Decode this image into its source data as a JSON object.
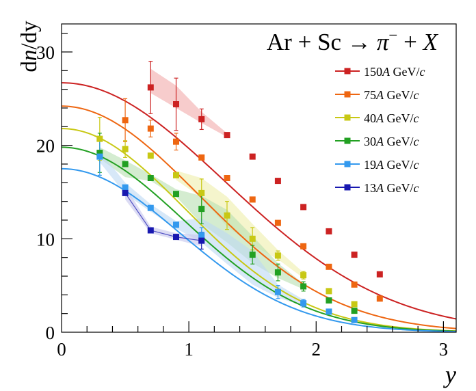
{
  "chart_data": {
    "type": "scatter",
    "title": "Ar + Sc → π⁻ + X",
    "title_parts": {
      "lhs": "Ar + Sc ",
      "arrow": "→",
      "particle": "π",
      "charge": "−",
      "rhs_plus": " + ",
      "rhs_var": "X"
    },
    "xlabel": "y",
    "ylabel": {
      "d1": "d",
      "n": "n",
      "rest": "/dy"
    },
    "xlim": [
      0,
      3.1
    ],
    "ylim": [
      0,
      33
    ],
    "x_ticks": [
      0,
      1,
      2,
      3
    ],
    "x_tick_labels": [
      "0",
      "1",
      "2",
      "3"
    ],
    "y_ticks": [
      0,
      10,
      20,
      30
    ],
    "y_tick_labels": [
      "0",
      "10",
      "20",
      "30"
    ],
    "grid": false,
    "legend_position": "top-right",
    "series": [
      {
        "name": "150A GeV/c",
        "legend": {
          "num": "150",
          "A": "A",
          "unit": " GeV/",
          "c": "c"
        },
        "color": "#cc2222",
        "band_color": "#f2aaaa",
        "curve": {
          "A": 26.7,
          "sigma": 1.28
        },
        "points": [
          {
            "x": 0.7,
            "y": 26.2,
            "err": 2.8
          },
          {
            "x": 0.9,
            "y": 24.4,
            "err": 2.8
          },
          {
            "x": 1.1,
            "y": 22.8,
            "err": 1.1
          },
          {
            "x": 1.3,
            "y": 21.1,
            "err": 0
          },
          {
            "x": 1.5,
            "y": 18.8,
            "err": 0
          },
          {
            "x": 1.7,
            "y": 16.2,
            "err": 0
          },
          {
            "x": 1.9,
            "y": 13.4,
            "err": 0
          },
          {
            "x": 2.1,
            "y": 10.8,
            "err": 0
          },
          {
            "x": 2.3,
            "y": 8.3,
            "err": 0
          },
          {
            "x": 2.5,
            "y": 6.2,
            "err": 0
          }
        ],
        "band": [
          {
            "x": 0.7,
            "lo": 25.6,
            "hi": 28.2
          },
          {
            "x": 0.9,
            "lo": 24.0,
            "hi": 26.4
          },
          {
            "x": 1.1,
            "lo": 22.4,
            "hi": 23.6
          },
          {
            "x": 1.3,
            "lo": 20.9,
            "hi": 21.3
          }
        ]
      },
      {
        "name": "75A GeV/c",
        "legend": {
          "num": "75",
          "A": "A",
          "unit": " GeV/",
          "c": "c"
        },
        "color": "#ee6611",
        "band_color": "#f9c8a0",
        "curve": {
          "A": 24.2,
          "sigma": 1.08
        },
        "points": [
          {
            "x": 0.5,
            "y": 22.7,
            "err": 2.3
          },
          {
            "x": 0.7,
            "y": 21.8,
            "err": 0.9
          },
          {
            "x": 0.9,
            "y": 20.4,
            "err": 0.9
          },
          {
            "x": 1.1,
            "y": 18.7,
            "err": 0
          },
          {
            "x": 1.3,
            "y": 16.5,
            "err": 0
          },
          {
            "x": 1.5,
            "y": 14.2,
            "err": 0
          },
          {
            "x": 1.7,
            "y": 11.7,
            "err": 0
          },
          {
            "x": 1.9,
            "y": 9.2,
            "err": 0
          },
          {
            "x": 2.1,
            "y": 7.0,
            "err": 0
          },
          {
            "x": 2.3,
            "y": 5.1,
            "err": 0
          },
          {
            "x": 2.5,
            "y": 3.6,
            "err": 0
          }
        ],
        "band": []
      },
      {
        "name": "40A GeV/c",
        "legend": {
          "num": "40",
          "A": "A",
          "unit": " GeV/",
          "c": "c"
        },
        "color": "#c8c814",
        "band_color": "#eeeeaa",
        "curve": {
          "A": 21.8,
          "sigma": 0.97
        },
        "points": [
          {
            "x": 0.3,
            "y": 20.7,
            "err": 2.3
          },
          {
            "x": 0.5,
            "y": 19.6,
            "err": 0.9
          },
          {
            "x": 0.7,
            "y": 18.9,
            "err": 0
          },
          {
            "x": 0.9,
            "y": 16.8,
            "err": 0
          },
          {
            "x": 1.1,
            "y": 14.9,
            "err": 1.5
          },
          {
            "x": 1.3,
            "y": 12.5,
            "err": 1.5
          },
          {
            "x": 1.5,
            "y": 10.0,
            "err": 1.2
          },
          {
            "x": 1.7,
            "y": 8.2,
            "err": 0.5
          },
          {
            "x": 1.9,
            "y": 6.1,
            "err": 0.4
          },
          {
            "x": 2.1,
            "y": 4.4,
            "err": 0
          },
          {
            "x": 2.3,
            "y": 3.0,
            "err": 0
          }
        ],
        "band": [
          {
            "x": 0.9,
            "lo": 16.3,
            "hi": 17.3
          },
          {
            "x": 1.1,
            "lo": 14.4,
            "hi": 16.5
          },
          {
            "x": 1.3,
            "lo": 11.3,
            "hi": 14.5
          },
          {
            "x": 1.5,
            "lo": 9.3,
            "hi": 11.6
          },
          {
            "x": 1.7,
            "lo": 7.8,
            "hi": 8.8
          },
          {
            "x": 1.9,
            "lo": 5.8,
            "hi": 6.4
          }
        ]
      },
      {
        "name": "30A GeV/c",
        "legend": {
          "num": "30",
          "A": "A",
          "unit": " GeV/",
          "c": "c"
        },
        "color": "#22a022",
        "band_color": "#b8e0b0",
        "curve": {
          "A": 19.8,
          "sigma": 0.96
        },
        "points": [
          {
            "x": 0.3,
            "y": 19.2,
            "err": 2.1
          },
          {
            "x": 0.5,
            "y": 18.0,
            "err": 0
          },
          {
            "x": 0.7,
            "y": 16.5,
            "err": 0
          },
          {
            "x": 0.9,
            "y": 14.8,
            "err": 0
          },
          {
            "x": 1.1,
            "y": 13.2,
            "err": 1.6
          },
          {
            "x": 1.5,
            "y": 8.3,
            "err": 1.0
          },
          {
            "x": 1.7,
            "y": 6.4,
            "err": 0.9
          },
          {
            "x": 1.9,
            "y": 4.9,
            "err": 0.5
          },
          {
            "x": 2.1,
            "y": 3.4,
            "err": 0
          },
          {
            "x": 2.3,
            "y": 2.3,
            "err": 0
          }
        ],
        "band": [
          {
            "x": 0.3,
            "lo": 18.6,
            "hi": 19.8
          },
          {
            "x": 0.5,
            "lo": 16.6,
            "hi": 18.4
          },
          {
            "x": 0.7,
            "lo": 16.2,
            "hi": 16.9
          },
          {
            "x": 0.9,
            "lo": 14.5,
            "hi": 15.3
          },
          {
            "x": 1.1,
            "lo": 11.6,
            "hi": 14.6
          },
          {
            "x": 1.3,
            "lo": 9.6,
            "hi": 13.1
          },
          {
            "x": 1.5,
            "lo": 7.4,
            "hi": 10.3
          },
          {
            "x": 1.7,
            "lo": 5.8,
            "hi": 7.4
          },
          {
            "x": 1.9,
            "lo": 4.6,
            "hi": 5.2
          }
        ]
      },
      {
        "name": "19A GeV/c",
        "legend": {
          "num": "19",
          "A": "A",
          "unit": " GeV/",
          "c": "c"
        },
        "color": "#3399ee",
        "band_color": "#bcd9f4",
        "curve": {
          "A": 17.5,
          "sigma": 0.93
        },
        "points": [
          {
            "x": 0.3,
            "y": 18.8,
            "err": 2.0
          },
          {
            "x": 0.5,
            "y": 15.5,
            "err": 0
          },
          {
            "x": 0.7,
            "y": 13.3,
            "err": 0
          },
          {
            "x": 0.9,
            "y": 11.5,
            "err": 0
          },
          {
            "x": 1.1,
            "y": 10.4,
            "err": 0.8
          },
          {
            "x": 1.7,
            "y": 4.3,
            "err": 0.7
          },
          {
            "x": 1.9,
            "y": 3.1,
            "err": 0.4
          },
          {
            "x": 2.1,
            "y": 2.2,
            "err": 0
          },
          {
            "x": 2.3,
            "y": 1.3,
            "err": 0
          }
        ],
        "band": [
          {
            "x": 0.3,
            "lo": 18.2,
            "hi": 19.4
          },
          {
            "x": 0.5,
            "lo": 14.8,
            "hi": 16.0
          },
          {
            "x": 0.7,
            "lo": 12.9,
            "hi": 13.7
          },
          {
            "x": 0.9,
            "lo": 11.1,
            "hi": 11.9
          },
          {
            "x": 1.1,
            "lo": 9.6,
            "hi": 12.2
          },
          {
            "x": 1.3,
            "lo": 7.3,
            "hi": 10.6
          },
          {
            "x": 1.5,
            "lo": 5.1,
            "hi": 8.7
          },
          {
            "x": 1.7,
            "lo": 3.7,
            "hi": 5.1
          },
          {
            "x": 1.9,
            "lo": 2.8,
            "hi": 3.5
          }
        ]
      },
      {
        "name": "13A GeV/c",
        "legend": {
          "num": "13",
          "A": "A",
          "unit": " GeV/",
          "c": "c"
        },
        "color": "#1818b0",
        "band_color": "#c4c4ec",
        "curve": null,
        "points": [
          {
            "x": 0.5,
            "y": 14.9,
            "err": 0
          },
          {
            "x": 0.7,
            "y": 10.9,
            "err": 0
          },
          {
            "x": 0.9,
            "y": 10.2,
            "err": 0
          },
          {
            "x": 1.1,
            "y": 9.8,
            "err": 0.9
          }
        ],
        "band": [
          {
            "x": 0.5,
            "lo": 14.2,
            "hi": 15.6
          },
          {
            "x": 0.7,
            "lo": 10.6,
            "hi": 11.3
          },
          {
            "x": 0.9,
            "lo": 9.9,
            "hi": 10.6
          },
          {
            "x": 1.1,
            "lo": 9.2,
            "hi": 10.4
          }
        ]
      }
    ]
  }
}
